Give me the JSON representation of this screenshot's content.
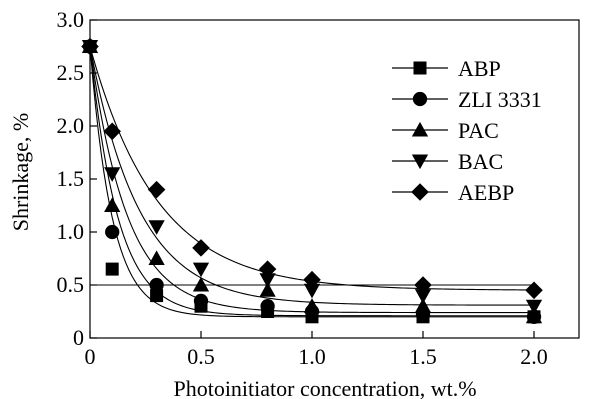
{
  "chart_data": {
    "type": "scatter",
    "title": "",
    "xlabel": "Photoinitiator concentration, wt.%",
    "ylabel": "Shrinkage, %",
    "xlim": [
      0,
      2.2
    ],
    "ylim": [
      0,
      3.0
    ],
    "xticks": [
      0,
      0.5,
      1.0,
      1.5,
      2.0
    ],
    "xtick_labels": [
      "0",
      "0.5",
      "1.0",
      "1.5",
      "2.0"
    ],
    "yticks": [
      0,
      0.5,
      1.0,
      1.5,
      2.0,
      2.5,
      3.0
    ],
    "ytick_labels": [
      "0",
      "0.5",
      "1.0",
      "1.5",
      "2.0",
      "2.5",
      "3.0"
    ],
    "reference_line_y": 0.5,
    "legend_position": "top-right",
    "grid": false,
    "series": [
      {
        "name": "ABP",
        "marker": "square",
        "x": [
          0,
          0.1,
          0.3,
          0.5,
          0.8,
          1.0,
          1.5,
          2.0
        ],
        "y": [
          2.75,
          0.65,
          0.4,
          0.3,
          0.25,
          0.2,
          0.2,
          0.2
        ],
        "fit_start": 2.75,
        "fit_end": 0.2,
        "fit_k": 10
      },
      {
        "name": "ZLI 3331",
        "marker": "circle",
        "x": [
          0,
          0.1,
          0.3,
          0.5,
          0.8,
          1.0,
          1.5,
          2.0
        ],
        "y": [
          2.75,
          1.0,
          0.5,
          0.35,
          0.3,
          0.25,
          0.22,
          0.2
        ],
        "fit_start": 2.75,
        "fit_end": 0.21,
        "fit_k": 8
      },
      {
        "name": "PAC",
        "marker": "triangle-up",
        "x": [
          0,
          0.1,
          0.3,
          0.5,
          0.8,
          1.0,
          1.5,
          2.0
        ],
        "y": [
          2.75,
          1.25,
          0.75,
          0.5,
          0.45,
          0.3,
          0.3,
          0.2
        ],
        "fit_start": 2.75,
        "fit_end": 0.24,
        "fit_k": 6
      },
      {
        "name": "BAC",
        "marker": "triangle-down",
        "x": [
          0,
          0.1,
          0.3,
          0.5,
          0.8,
          1.0,
          1.5,
          2.0
        ],
        "y": [
          2.75,
          1.55,
          1.05,
          0.65,
          0.55,
          0.45,
          0.4,
          0.3
        ],
        "fit_start": 2.75,
        "fit_end": 0.31,
        "fit_k": 4.5
      },
      {
        "name": "AEBP",
        "marker": "diamond",
        "x": [
          0,
          0.1,
          0.3,
          0.5,
          0.8,
          1.0,
          1.5,
          2.0
        ],
        "y": [
          2.75,
          1.95,
          1.4,
          0.85,
          0.65,
          0.55,
          0.5,
          0.45
        ],
        "fit_start": 2.75,
        "fit_end": 0.45,
        "fit_k": 3.3
      }
    ]
  }
}
